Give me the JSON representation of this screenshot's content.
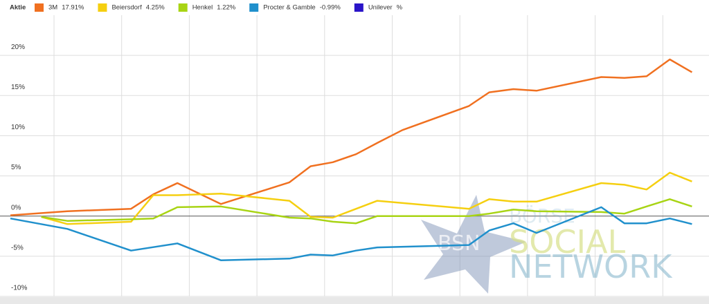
{
  "chart_data": {
    "type": "line",
    "legend_title": "Aktie",
    "ylim": [
      -10,
      25
    ],
    "yticks": [
      {
        "value": 20,
        "label": "20%"
      },
      {
        "value": 15,
        "label": "15%"
      },
      {
        "value": 10,
        "label": "10%"
      },
      {
        "value": 5,
        "label": "5%"
      },
      {
        "value": 0,
        "label": "0%"
      },
      {
        "value": -5,
        "label": "-5%"
      },
      {
        "value": -10,
        "label": "-10%"
      }
    ],
    "xlim": [
      0,
      71
    ],
    "grid": true,
    "series": [
      {
        "name": "3M",
        "change_label": "17.91%",
        "color": "#f07020",
        "x": [
          0,
          5.9,
          12.5,
          14.8,
          17.3,
          21.8,
          28.9,
          31.1,
          33.4,
          35.8,
          38.0,
          40.6,
          47.5,
          49.6,
          52.1,
          54.5,
          61.2,
          63.6,
          65.9,
          68.3,
          70.6
        ],
        "values": [
          0.1,
          0.6,
          0.9,
          2.7,
          4.1,
          1.5,
          4.2,
          6.2,
          6.7,
          7.7,
          9.1,
          10.7,
          13.7,
          15.4,
          15.8,
          15.6,
          17.3,
          17.2,
          17.4,
          19.5,
          17.9
        ]
      },
      {
        "name": "Beiersdorf",
        "change_label": "4.25%",
        "color": "#f5cf10",
        "x": [
          3.2,
          5.9,
          12.5,
          14.8,
          17.3,
          21.8,
          28.9,
          31.1,
          33.4,
          38.0,
          47.5,
          49.6,
          52.1,
          54.5,
          61.2,
          63.6,
          65.9,
          68.3,
          70.6
        ],
        "values": [
          -0.1,
          -1.0,
          -0.7,
          2.6,
          2.6,
          2.8,
          1.9,
          -0.1,
          -0.2,
          1.9,
          0.9,
          2.1,
          1.8,
          1.8,
          4.1,
          3.9,
          3.3,
          5.4,
          4.3
        ]
      },
      {
        "name": "Henkel",
        "change_label": "1.22%",
        "color": "#a8d414",
        "x": [
          3.2,
          5.9,
          12.5,
          14.8,
          17.3,
          21.8,
          28.9,
          31.1,
          33.4,
          35.8,
          38.0,
          47.5,
          49.6,
          52.1,
          54.5,
          61.2,
          63.6,
          65.9,
          68.3,
          70.6
        ],
        "values": [
          -0.1,
          -0.6,
          -0.4,
          -0.3,
          1.1,
          1.2,
          -0.2,
          -0.3,
          -0.7,
          -0.9,
          0,
          0,
          0.3,
          0.8,
          0.6,
          0.5,
          0.3,
          1.2,
          2.1,
          1.2
        ]
      },
      {
        "name": "Procter & Gamble",
        "change_label": "-0.99%",
        "color": "#2090cc",
        "x": [
          0,
          5.9,
          12.5,
          17.3,
          21.8,
          28.9,
          31.1,
          33.4,
          35.8,
          38.0,
          47.5,
          49.6,
          52.1,
          54.5,
          61.2,
          63.6,
          65.9,
          68.3,
          70.6
        ],
        "values": [
          -0.3,
          -1.6,
          -4.3,
          -3.4,
          -5.5,
          -5.3,
          -4.8,
          -4.9,
          -4.3,
          -3.9,
          -3.6,
          -1.8,
          -0.9,
          -2.1,
          1.1,
          -0.9,
          -0.9,
          -0.3,
          -1.0
        ]
      },
      {
        "name": "Unilever",
        "change_label": "%",
        "color": "#2a14c8",
        "x": [],
        "values": []
      }
    ],
    "watermark": [
      "BSN",
      "BÖRSE",
      "SOCIAL",
      "NETWORK"
    ]
  }
}
